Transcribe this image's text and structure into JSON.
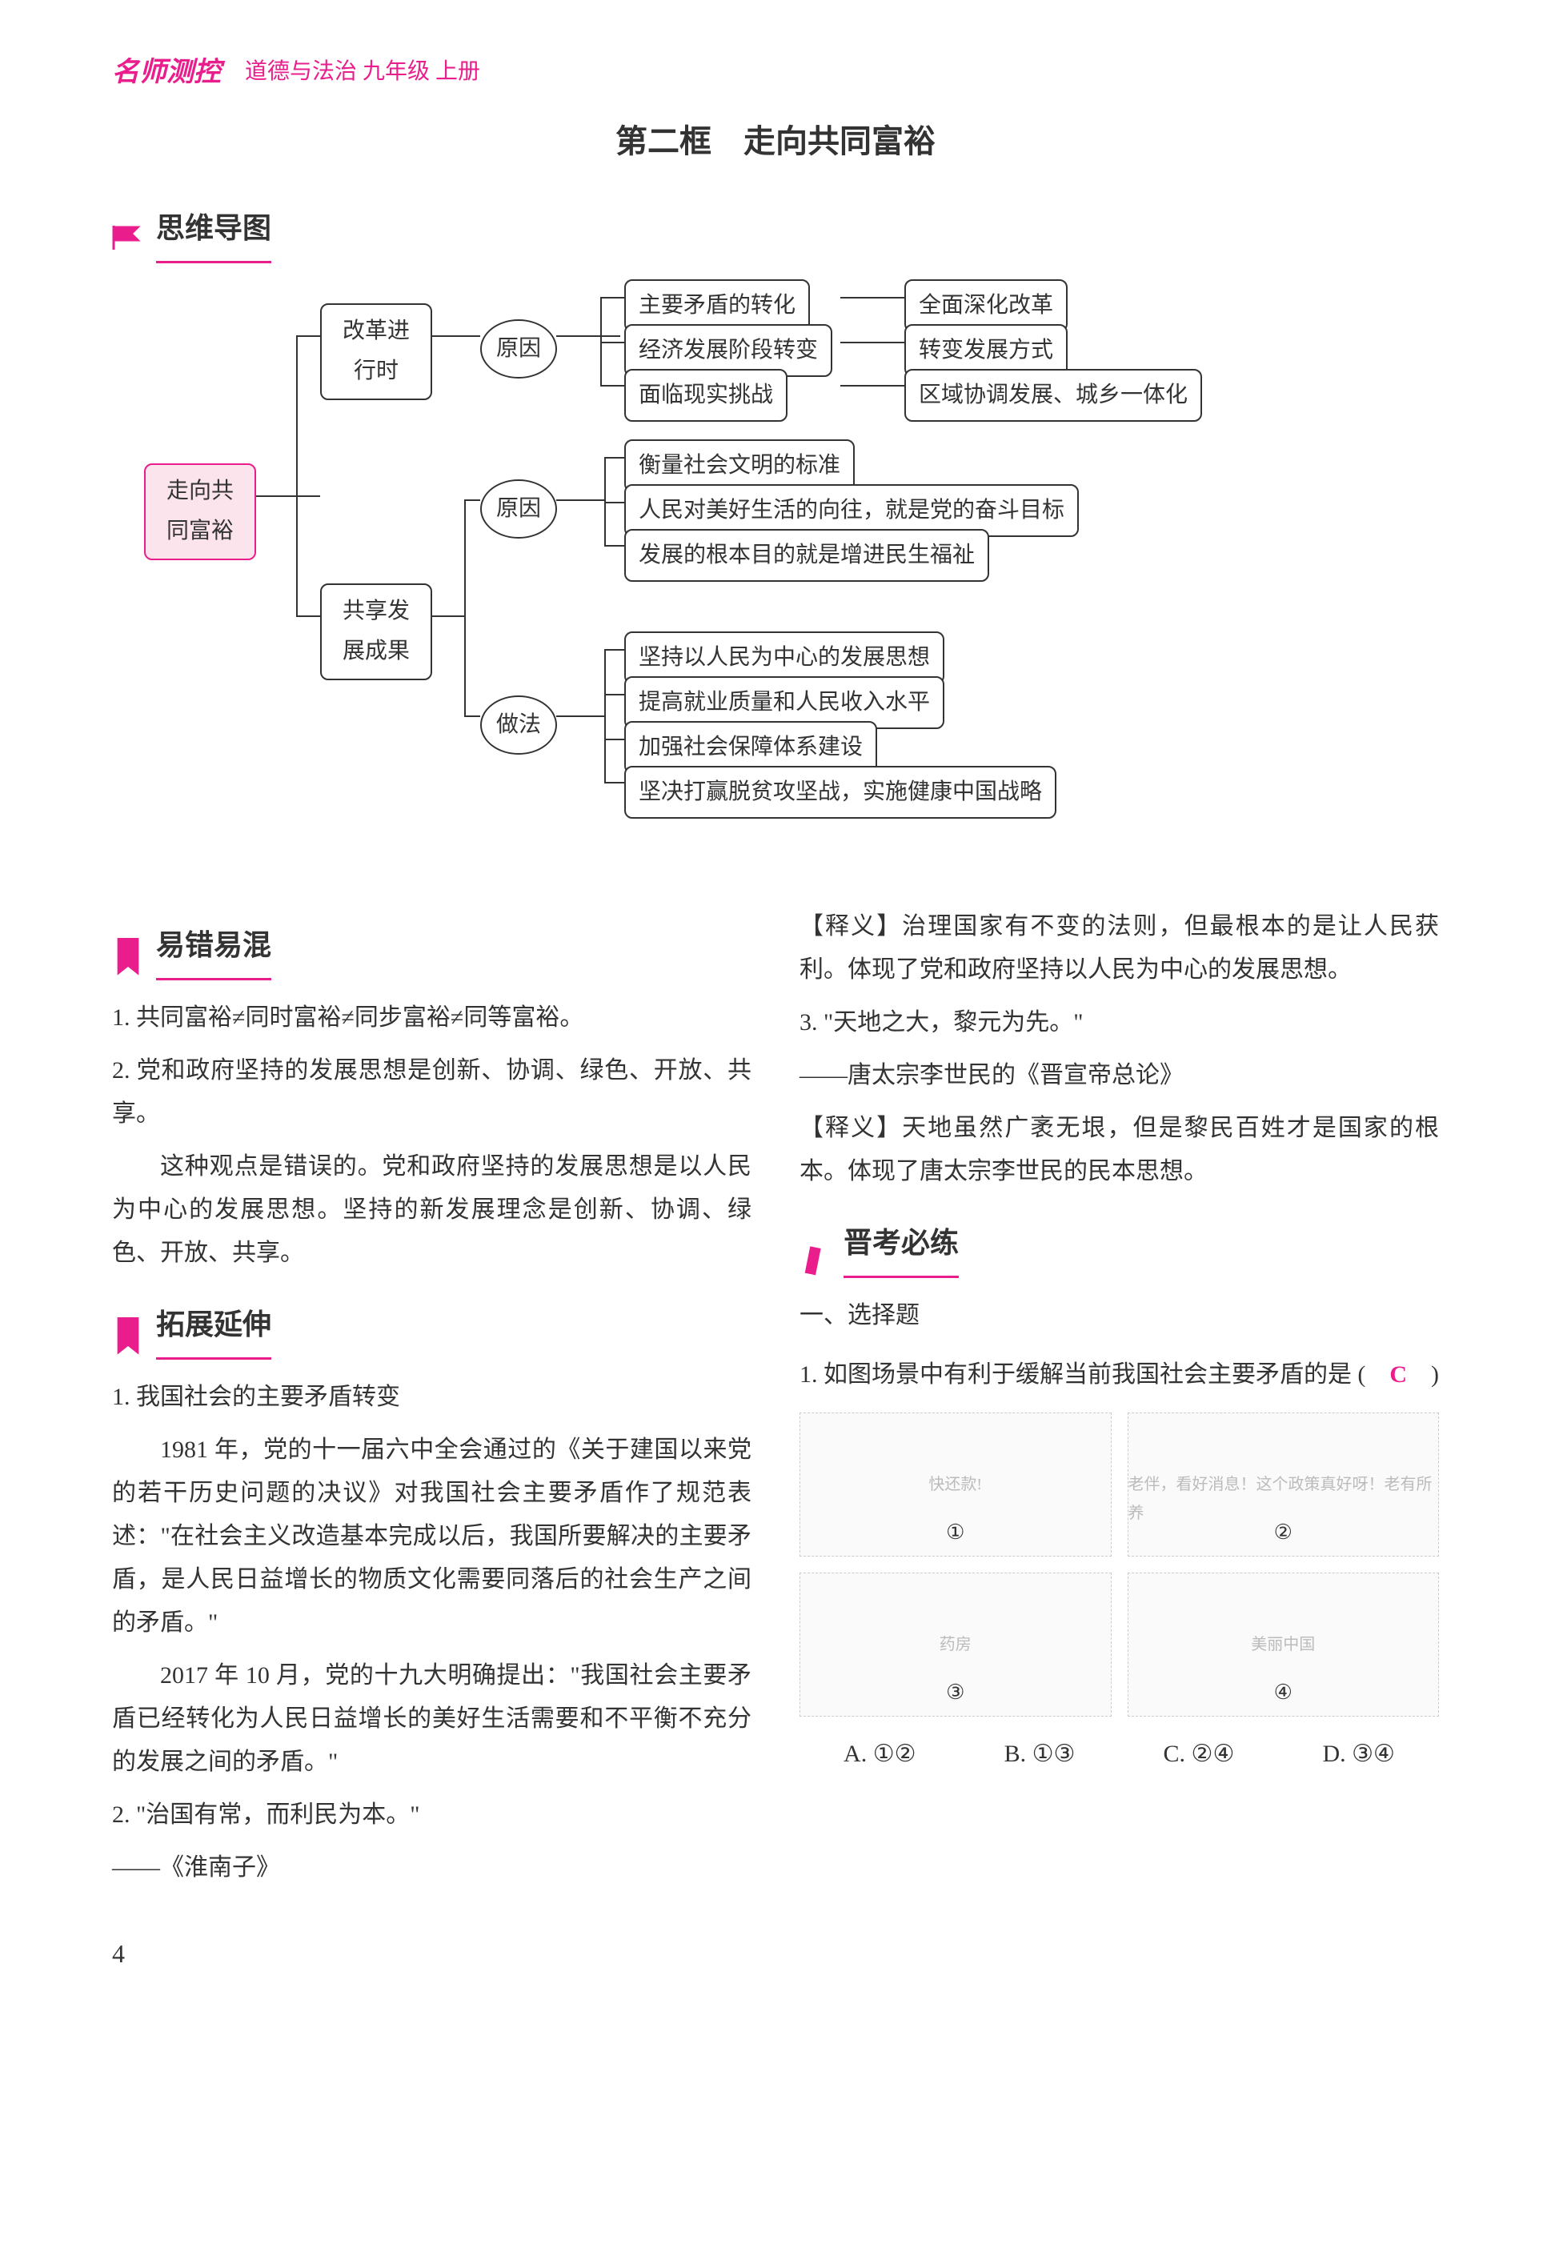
{
  "header": {
    "brand": "名师测控",
    "subject": "道德与法治 九年级 上册"
  },
  "page_title": "第二框　走向共同富裕",
  "sections": {
    "mindmap": "思维导图",
    "confusion": "易错易混",
    "extension": "拓展延伸",
    "practice": "晋考必练"
  },
  "diagram": {
    "center": "走向共\n同富裕",
    "branch1": {
      "label": "改革进\n行时",
      "cause": "原因",
      "items": [
        "主要矛盾的转化",
        "经济发展阶段转变",
        "面临现实挑战"
      ],
      "results": [
        "全面深化改革",
        "转变发展方式",
        "区域协调发展、城乡一体化"
      ]
    },
    "branch2": {
      "label": "共享发\n展成果",
      "cause": "原因",
      "cause_items": [
        "衡量社会文明的标准",
        "人民对美好生活的向往，就是党的奋斗目标",
        "发展的根本目的就是增进民生福祉"
      ],
      "method": "做法",
      "method_items": [
        "坚持以人民为中心的发展思想",
        "提高就业质量和人民收入水平",
        "加强社会保障体系建设",
        "坚决打赢脱贫攻坚战，实施健康中国战略"
      ]
    }
  },
  "confusion_items": [
    {
      "num": "1.",
      "text": "共同富裕≠同时富裕≠同步富裕≠同等富裕。"
    },
    {
      "num": "2.",
      "text": "党和政府坚持的发展思想是创新、协调、绿色、开放、共享。"
    }
  ],
  "confusion_explain": "这种观点是错误的。党和政府坚持的发展思想是以人民为中心的发展思想。坚持的新发展理念是创新、协调、绿色、开放、共享。",
  "extension": {
    "item1_title": "我国社会的主要矛盾转变",
    "item1_p1": "1981 年，党的十一届六中全会通过的《关于建国以来党的若干历史问题的决议》对我国社会主要矛盾作了规范表述：\"在社会主义改造基本完成以后，我国所要解决的主要矛盾，是人民日益增长的物质文化需要同落后的社会生产之间的矛盾。\"",
    "item1_p2": "2017 年 10 月，党的十九大明确提出：\"我国社会主要矛盾已经转化为人民日益增长的美好生活需要和不平衡不充分的发展之间的矛盾。\"",
    "item2_quote": "\"治国有常，而利民为本。\"",
    "item2_source": "——《淮南子》",
    "item2_explain": "【释义】治理国家有不变的法则，但最根本的是让人民获利。体现了党和政府坚持以人民为中心的发展思想。",
    "item3_quote": "\"天地之大，黎元为先。\"",
    "item3_source": "——唐太宗李世民的《晋宣帝总论》",
    "item3_explain": "【释义】天地虽然广袤无垠，但是黎民百姓才是国家的根本。体现了唐太宗李世民的民本思想。"
  },
  "practice": {
    "subtitle": "一、选择题",
    "q1": {
      "num": "1.",
      "text": "如图场景中有利于缓解当前我国社会主要矛盾的是",
      "answer": "C",
      "images": [
        "①",
        "②",
        "③",
        "④"
      ],
      "image_labels": [
        "快还款!",
        "老伴，看好消息！这个政策真好呀！老有所养",
        "药房",
        "美丽中国"
      ],
      "options": [
        "A. ①②",
        "B. ①③",
        "C. ②④",
        "D. ③④"
      ]
    }
  },
  "page_number": "4",
  "colors": {
    "brand": "#e91e8c",
    "text": "#333333",
    "bg": "#ffffff",
    "node_fill": "#fce4ec"
  },
  "typography": {
    "base_fontsize": 30,
    "title_fontsize": 40,
    "section_fontsize": 36
  }
}
